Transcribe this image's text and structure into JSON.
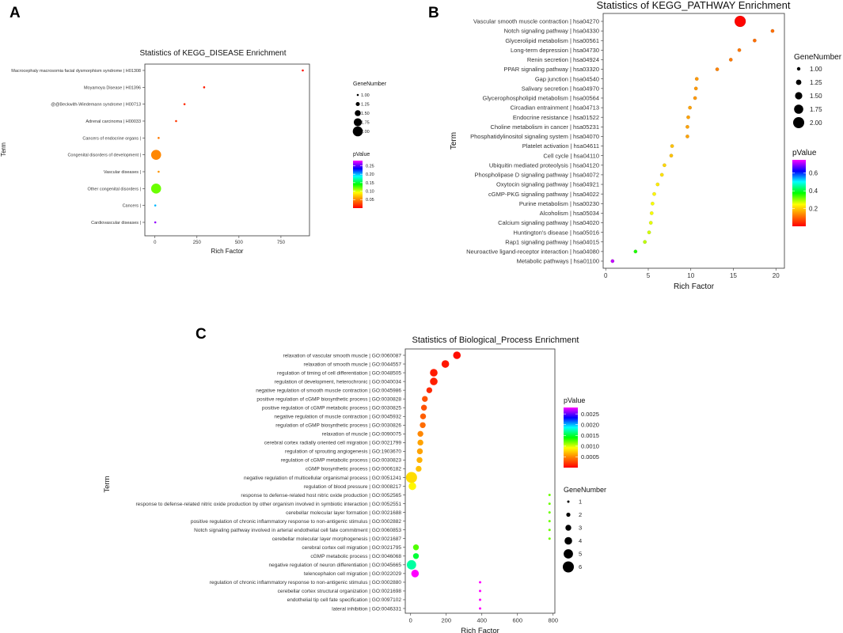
{
  "panels": {
    "a": {
      "letter": "A"
    },
    "b": {
      "letter": "B"
    },
    "c": {
      "letter": "C"
    }
  },
  "chart_data": [
    {
      "id": "a",
      "type": "scatter",
      "title": "Statistics of KEGG_DISEASE Enrichment",
      "xlabel": "Rich Factor",
      "ylabel": "Term",
      "xlim": [
        -60,
        920
      ],
      "xticks": [
        0,
        250,
        500,
        750
      ],
      "size_legend": {
        "title": "GeneNumber",
        "values": [
          1.0,
          1.25,
          1.5,
          1.75,
          2.0
        ],
        "labels": [
          "1.00",
          "1.25",
          "1.50",
          "1.75",
          "2.00"
        ]
      },
      "color_legend": {
        "title": "pValue",
        "range": [
          0.0,
          0.28
        ],
        "ticks": [
          0.25,
          0.2,
          0.15,
          0.1,
          0.05
        ],
        "labels": [
          "0.25",
          "0.20",
          "0.15",
          "0.10",
          "0.05"
        ]
      },
      "terms": [
        "Macrocephaly macrosomia facial dysmorphism syndrome | H01308",
        "Moyamoya Disease | H01396",
        "@@Beckwith-Wiedemann syndrome | H00713",
        "Adrenal carcinoma | H00033",
        "Cancers of endocrine organs |",
        "Congenital disorders of development |",
        "Vascular diseases |",
        "Other congenital disorders |",
        "Cancers |",
        "Cardiovascular diseases |"
      ],
      "rich_factor": [
        880,
        293,
        176,
        126,
        22,
        7,
        22,
        7,
        2,
        2
      ],
      "gene_number": [
        1,
        1,
        1,
        1,
        1,
        2,
        1,
        2,
        1,
        1
      ],
      "pvalue": [
        0.005,
        0.01,
        0.015,
        0.02,
        0.045,
        0.05,
        0.055,
        0.12,
        0.2,
        0.26
      ]
    },
    {
      "id": "b",
      "type": "scatter",
      "title": "Statistics of KEGG_PATHWAY Enrichment",
      "xlabel": "Rich Factor",
      "ylabel": "Term",
      "xlim": [
        -0.3,
        21
      ],
      "xticks": [
        0,
        5,
        10,
        15,
        20
      ],
      "size_legend": {
        "title": "GeneNumber",
        "values": [
          1.0,
          1.25,
          1.5,
          1.75,
          2.0
        ],
        "labels": [
          "1.00",
          "1.25",
          "1.50",
          "1.75",
          "2.00"
        ]
      },
      "color_legend": {
        "title": "pValue",
        "range": [
          0.0,
          0.75
        ],
        "ticks": [
          0.6,
          0.4,
          0.2
        ],
        "labels": [
          "0.6",
          "0.4",
          "0.2"
        ]
      },
      "terms": [
        "Vascular smooth muscle contraction | hsa04270",
        "Notch signaling pathway | hsa04330",
        "Glycerolipid metabolism | hsa00561",
        "Long-term depression | hsa04730",
        "Renin secretion | hsa04924",
        "PPAR signaling pathway | hsa03320",
        "Gap junction | hsa04540",
        "Salivary secretion | hsa04970",
        "Glycerophospholipid metabolism | hsa00564",
        "Circadian entrainment | hsa04713",
        "Endocrine resistance | hsa01522",
        "Choline metabolism in cancer | hsa05231",
        "Phosphatidylinositol signaling system | hsa04070",
        "Platelet activation | hsa04611",
        "Cell cycle | hsa04110",
        "Ubiquitin mediated proteolysis | hsa04120",
        "Phospholipase D signaling pathway | hsa04072",
        "Oxytocin signaling pathway | hsa04921",
        "cGMP-PKG signaling pathway | hsa04022",
        "Purine metabolism | hsa00230",
        "Alcoholism | hsa05034",
        "Calcium signaling pathway | hsa04020",
        "Huntington's disease | hsa05016",
        "Rap1 signaling pathway | hsa04015",
        "Neuroactive ligand-receptor interaction | hsa04080",
        "Metabolic pathways | hsa01100"
      ],
      "rich_factor": [
        15.8,
        19.6,
        17.5,
        15.7,
        14.7,
        13.1,
        10.7,
        10.6,
        10.5,
        9.9,
        9.7,
        9.6,
        9.6,
        7.8,
        7.7,
        6.9,
        6.6,
        6.1,
        5.7,
        5.5,
        5.4,
        5.3,
        5.1,
        4.6,
        3.5,
        0.8
      ],
      "gene_number": [
        2,
        1,
        1,
        1,
        1,
        1,
        1,
        1,
        1,
        1,
        1,
        1,
        1,
        1,
        1,
        1,
        1,
        1,
        1,
        1,
        1,
        1,
        1,
        1,
        1,
        1
      ],
      "pvalue": [
        0.005,
        0.11,
        0.11,
        0.12,
        0.12,
        0.13,
        0.15,
        0.15,
        0.15,
        0.16,
        0.16,
        0.16,
        0.16,
        0.19,
        0.19,
        0.21,
        0.22,
        0.23,
        0.24,
        0.25,
        0.25,
        0.26,
        0.27,
        0.28,
        0.36,
        0.72
      ]
    },
    {
      "id": "c",
      "type": "scatter",
      "title": "Statistics of Biological_Process Enrichment",
      "xlabel": "Rich Factor",
      "ylabel": "Term",
      "xlim": [
        -30,
        810
      ],
      "xticks": [
        0,
        200,
        400,
        600,
        800
      ],
      "size_legend": {
        "title": "GeneNumber",
        "values": [
          1,
          2,
          3,
          4,
          5,
          6
        ],
        "labels": [
          "1",
          "2",
          "3",
          "4",
          "5",
          "6"
        ]
      },
      "color_legend": {
        "title": "pValue",
        "range": [
          0.0,
          0.0028
        ],
        "ticks": [
          0.0025,
          0.002,
          0.0015,
          0.001,
          0.0005
        ],
        "labels": [
          "0.0025",
          "0.0020",
          "0.0015",
          "0.0010",
          "0.0005"
        ]
      },
      "terms": [
        "relaxation of vascular smooth muscle | GO:0060087",
        "relaxation of smooth muscle | GO:0044557",
        "regulation of timing of cell differentiation | GO:0048505",
        "regulation of development, heterochronic | GO:0040034",
        "negative regulation of smooth muscle contraction | GO:0045986",
        "positive regulation of cGMP biosynthetic process | GO:0030828",
        "positive regulation of cGMP metabolic process | GO:0030825",
        "negative regulation of muscle contraction | GO:0045932",
        "regulation of cGMP biosynthetic process | GO:0030826",
        "relaxation of muscle | GO:0090075",
        "cerebral cortex radially oriented cell migration | GO:0021799",
        "regulation of sprouting angiogenesis | GO:1903670",
        "regulation of cGMP metabolic process | GO:0030823",
        "cGMP biosynthetic process | GO:0006182",
        "negative regulation of multicellular organismal process | GO:0051241",
        "regulation of blood pressure | GO:0008217",
        "response to defense-related host nitric oxide production | GO:0052565",
        "response to defense-related nitric oxide production by other organism involved in symbiotic interaction | GO:0052551",
        "cerebellar molecular layer formation | GO:0021688",
        "positive regulation of chronic inflammatory response to non-antigenic stimulus | GO:0002882",
        "Notch signaling pathway involved in arterial endothelial cell fate commitment | GO:0060853",
        "cerebellar molecular layer morphogenesis | GO:0021687",
        "cerebral cortex cell migration | GO:0021795",
        "cGMP metabolic process | GO:0046068",
        "negative regulation of neuron differentiation | GO:0045665",
        "telencephalon cell migration | GO:0022029",
        "regulation of chronic inflammatory response to non-antigenic stimulus | GO:0002880",
        "cerebellar cortex structural organization | GO:0021698",
        "endothelial tip cell fate specification | GO:0097102",
        "lateral inhibition | GO:0046331"
      ],
      "rich_factor": [
        260,
        195,
        130,
        130,
        105,
        80,
        75,
        70,
        68,
        55,
        55,
        52,
        50,
        45,
        5,
        10,
        780,
        780,
        780,
        780,
        780,
        780,
        30,
        30,
        5,
        25,
        390,
        390,
        390,
        390
      ],
      "gene_number": [
        4,
        4,
        4,
        4,
        3,
        3,
        3,
        3,
        3,
        3,
        3,
        3,
        3,
        3,
        6,
        4,
        1,
        1,
        1,
        1,
        1,
        1,
        3,
        3,
        5,
        4,
        1,
        1,
        1,
        1
      ],
      "pvalue": [
        5e-05,
        8e-05,
        0.0001,
        0.00012,
        0.00015,
        0.0003,
        0.0003,
        0.00035,
        0.0004,
        0.0005,
        0.0006,
        0.0006,
        0.00065,
        0.0007,
        0.0008,
        0.0009,
        0.0012,
        0.0012,
        0.0012,
        0.0012,
        0.0012,
        0.0012,
        0.00125,
        0.0015,
        0.0017,
        0.0028,
        0.0028,
        0.0028,
        0.0028,
        0.0028
      ]
    }
  ]
}
